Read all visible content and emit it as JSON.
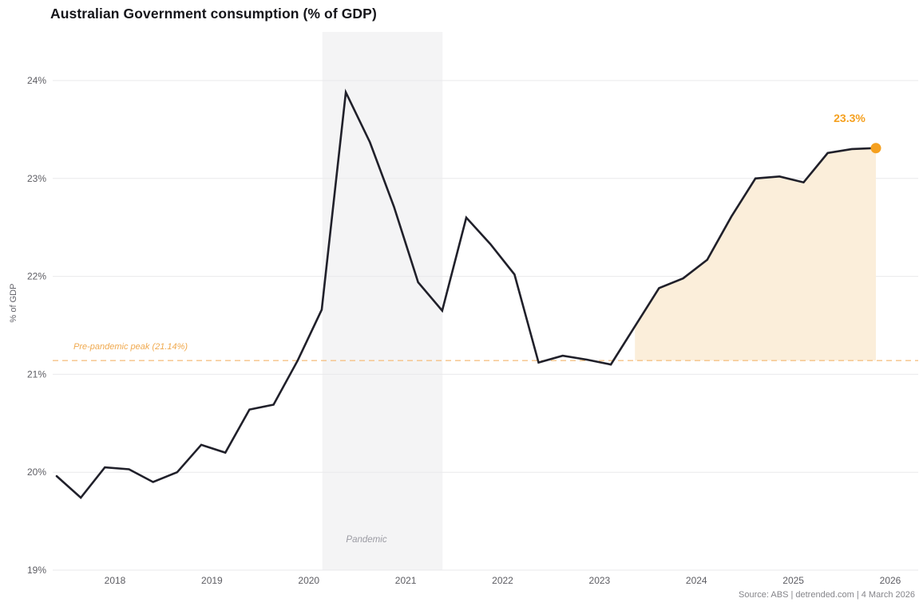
{
  "header": {
    "title": "Australian Government consumption (% of GDP)"
  },
  "footer": {
    "source": "Source: ABS | detrended.com | 4 March 2026"
  },
  "chart_data": {
    "type": "line",
    "title": "Australian Government consumption (% of GDP)",
    "xlabel": "",
    "ylabel": "% of GDP",
    "ylim": [
      19,
      24.5
    ],
    "grid": "horizontal",
    "legend": "none",
    "y_ticks": [
      19,
      20,
      21,
      22,
      23,
      24
    ],
    "y_tick_suffix": "%",
    "x_tick_years": [
      2018,
      2019,
      2020,
      2021,
      2022,
      2023,
      2024,
      2025,
      2026
    ],
    "x_tick_labels": [
      "2018",
      "2019",
      "2020",
      "2021",
      "2022",
      "2023",
      "2024",
      "2025",
      "2026"
    ],
    "series": [
      {
        "name": "Government consumption (% of GDP)",
        "quarters": [
          "2017-Q2",
          "2017-Q3",
          "2017-Q4",
          "2018-Q1",
          "2018-Q2",
          "2018-Q3",
          "2018-Q4",
          "2019-Q1",
          "2019-Q2",
          "2019-Q3",
          "2019-Q4",
          "2020-Q1",
          "2020-Q2",
          "2020-Q3",
          "2020-Q4",
          "2021-Q1",
          "2021-Q2",
          "2021-Q3",
          "2021-Q4",
          "2022-Q1",
          "2022-Q2",
          "2022-Q3",
          "2022-Q4",
          "2023-Q1",
          "2023-Q2",
          "2023-Q3",
          "2023-Q4",
          "2024-Q1",
          "2024-Q2",
          "2024-Q3",
          "2024-Q4",
          "2025-Q1",
          "2025-Q2",
          "2025-Q3",
          "2025-Q4"
        ],
        "values": [
          19.96,
          19.74,
          20.05,
          20.03,
          19.9,
          20.0,
          20.28,
          20.2,
          20.64,
          20.69,
          21.14,
          21.66,
          23.88,
          23.37,
          22.71,
          21.94,
          21.65,
          22.6,
          22.33,
          22.02,
          21.12,
          21.19,
          21.15,
          21.1,
          21.49,
          21.88,
          21.98,
          22.17,
          22.61,
          23.0,
          23.02,
          22.96,
          23.26,
          23.3,
          23.31
        ]
      }
    ],
    "reference_line": {
      "label": "Pre-pandemic peak (21.14%)",
      "value": 21.14,
      "style": "dashed"
    },
    "pandemic_band": {
      "label": "Pandemic",
      "from_year": 2020.14,
      "to_year": 2021.38
    },
    "highlight_area": {
      "description": "area between line and pre-pandemic peak from mid-2023 to latest point",
      "start_index": 24,
      "baseline_value": 21.14
    },
    "end_annotation": {
      "label": "23.3%",
      "value": 23.31,
      "quarter": "2025-Q4"
    },
    "colors": {
      "line": "#20202a",
      "accent": "#f5a01f",
      "area_fill": "#fbeeda",
      "dashed_line": "#f5c286",
      "band": "#f4f4f5",
      "grid": "#e9e9eb",
      "axis_text": "#5d5d63"
    }
  }
}
